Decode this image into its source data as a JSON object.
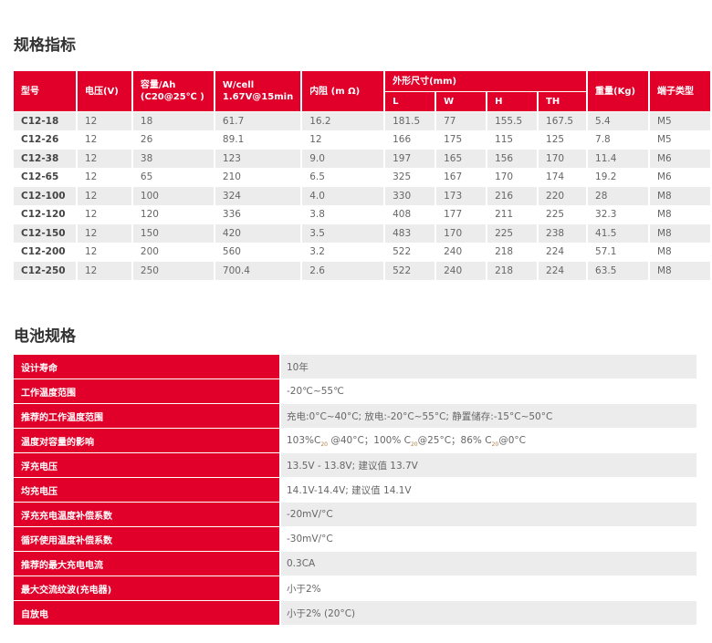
{
  "spec_title": "规格指标",
  "spec_headers": {
    "model": "型号",
    "voltage": "电压(V)",
    "capacity": "容量/Ah (C20@25℃ )",
    "wcell": "W/cell 1.67V@15min",
    "resistance": "内阻 (m Ω)",
    "dims": "外形尺寸(mm)",
    "L": "L",
    "W": "W",
    "H": "H",
    "TH": "TH",
    "weight": "重量(Kg)",
    "terminal": "端子类型"
  },
  "spec_rows": [
    [
      "C12-18",
      "12",
      "18",
      "61.7",
      "16.2",
      "181.5",
      "77",
      "155.5",
      "167.5",
      "5.4",
      "M5"
    ],
    [
      "C12-26",
      "12",
      "26",
      "89.1",
      "12",
      "166",
      "175",
      "115",
      "125",
      "7.8",
      "M5"
    ],
    [
      "C12-38",
      "12",
      "38",
      "123",
      "9.0",
      "197",
      "165",
      "156",
      "170",
      "11.4",
      "M6"
    ],
    [
      "C12-65",
      "12",
      "65",
      "210",
      "6.5",
      "325",
      "167",
      "170",
      "174",
      "19.2",
      "M6"
    ],
    [
      "C12-100",
      "12",
      "100",
      "324",
      "4.0",
      "330",
      "173",
      "216",
      "220",
      "28",
      "M8"
    ],
    [
      "C12-120",
      "12",
      "120",
      "336",
      "3.8",
      "408",
      "177",
      "211",
      "225",
      "32.3",
      "M8"
    ],
    [
      "C12-150",
      "12",
      "150",
      "420",
      "3.5",
      "483",
      "170",
      "225",
      "238",
      "41.5",
      "M8"
    ],
    [
      "C12-200",
      "12",
      "200",
      "560",
      "3.2",
      "522",
      "240",
      "218",
      "224",
      "57.1",
      "M8"
    ],
    [
      "C12-250",
      "12",
      "250",
      "700.4",
      "2.6",
      "522",
      "240",
      "218",
      "224",
      "63.5",
      "M8"
    ]
  ],
  "battery_title": "电池规格",
  "battery_rows": [
    {
      "k": "设计寿命",
      "v": "10年"
    },
    {
      "k": "工作温度范围",
      "v": "-20℃~55℃"
    },
    {
      "k": "推荐的工作温度范围",
      "v": "充电:0°C~40°C; 放电:-20°C~55°C; 静置储存:-15°C~50°C"
    },
    {
      "k": "温度对容量的影响",
      "parts": [
        "103%C",
        "20",
        " @40°C；100% C",
        "20",
        "@25°C；86% C",
        "20",
        "@0°C"
      ]
    },
    {
      "k": "浮充电压",
      "v": "13.5V - 13.8V; 建议值 13.7V"
    },
    {
      "k": "均充电压",
      "v": "14.1V-14.4V; 建议值 14.1V"
    },
    {
      "k": "浮充充电温度补偿系数",
      "v": "-20mV/°C"
    },
    {
      "k": "循环使用温度补偿系数",
      "v": "-30mV/°C"
    },
    {
      "k": "推荐的最大充电电流",
      "v": "0.3CA"
    },
    {
      "k": "最大交流纹波(充电器)",
      "v": "小于2%"
    },
    {
      "k": "自放电",
      "v": "小于2% (20°C)"
    }
  ],
  "colors": {
    "accent": "#e0002a",
    "stripe": "#ebeceb"
  }
}
